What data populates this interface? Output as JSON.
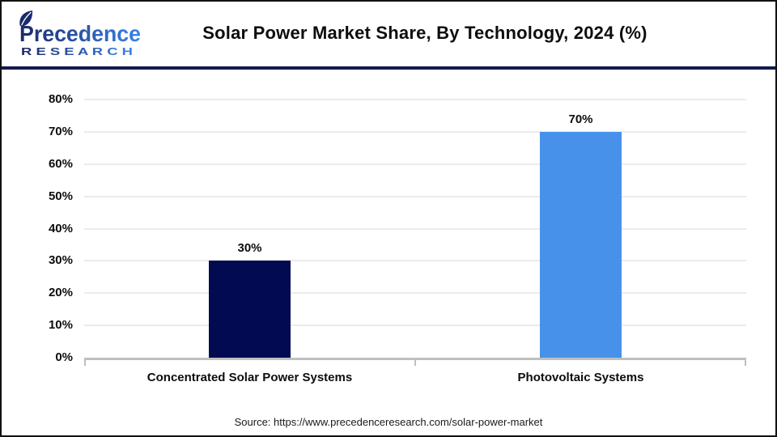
{
  "header": {
    "logo": {
      "name": "Precedence",
      "subtitle": "R E S E A R C H"
    },
    "title": "Solar Power Market Share, By Technology, 2024 (%)"
  },
  "chart_data": {
    "type": "bar",
    "title": "Solar Power Market Share, By Technology, 2024 (%)",
    "categories": [
      "Concentrated Solar Power Systems",
      "Photovoltaic Systems"
    ],
    "values": [
      30,
      70
    ],
    "value_labels": [
      "30%",
      "70%"
    ],
    "bar_colors": [
      "#020a52",
      "#4791ea"
    ],
    "xlabel": "",
    "ylabel": "",
    "ylim": [
      0,
      80
    ],
    "yticks": [
      0,
      10,
      20,
      30,
      40,
      50,
      60,
      70,
      80
    ],
    "ytick_labels": [
      "0%",
      "10%",
      "20%",
      "30%",
      "40%",
      "50%",
      "60%",
      "70%",
      "80%"
    ],
    "grid": true,
    "legend": false
  },
  "footer": {
    "source": "Source: https://www.precedenceresearch.com/solar-power-market"
  },
  "colors": {
    "bar_dark_navy": "#020a52",
    "bar_blue": "#4791ea",
    "divider_navy": "#141a4f",
    "gridline": "#ebebeb",
    "axis_gray": "#bfbfbf",
    "logo_gradient_start": "#1b2a6b",
    "logo_gradient_end": "#3b82e8",
    "text": "#0d0d0d"
  }
}
